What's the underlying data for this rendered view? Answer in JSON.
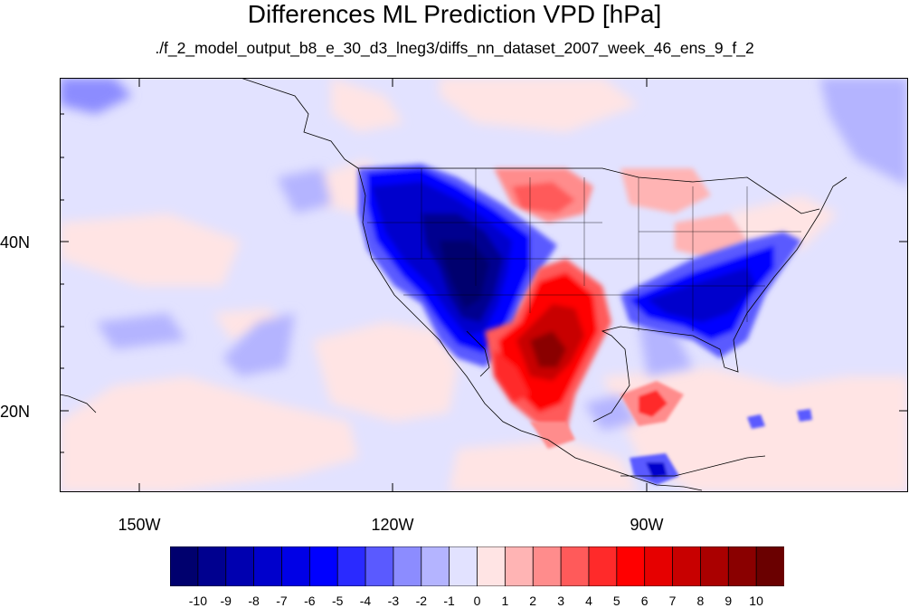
{
  "title": "Differences ML Prediction VPD [hPa]",
  "subtitle": "./f_2_model_output_b8_e_30_d3_lneg3/diffs_nn_dataset_2007_week_46_ens_9_f_2",
  "map": {
    "lon_range": [
      -160,
      -60
    ],
    "lat_range": [
      10,
      59
    ],
    "lat_labels": [
      {
        "lat": 40,
        "text": "40N"
      },
      {
        "lat": 20,
        "text": "20N"
      }
    ],
    "lon_labels": [
      {
        "lon": -150,
        "text": "150W"
      },
      {
        "lon": -120,
        "text": "120W"
      },
      {
        "lon": -90,
        "text": "90W"
      }
    ],
    "regions": [
      {
        "name": "western-us-negative",
        "value": -10,
        "lon": -112,
        "lat": 38
      },
      {
        "name": "texas-mexico-positive",
        "value": 9,
        "lon": -102,
        "lat": 27
      },
      {
        "name": "southeast-us-negative",
        "value": -6,
        "lon": -87,
        "lat": 34
      },
      {
        "name": "northern-plains-positive",
        "value": 3,
        "lon": -102,
        "lat": 46
      },
      {
        "name": "caribbean-positive",
        "value": 5,
        "lon": -89,
        "lat": 20
      }
    ]
  },
  "colorbar": {
    "labels": [
      "-10",
      "-9",
      "-8",
      "-7",
      "-6",
      "-5",
      "-4",
      "-3",
      "-2",
      "-1",
      "0",
      "1",
      "2",
      "3",
      "4",
      "5",
      "6",
      "7",
      "8",
      "9",
      "10"
    ],
    "colors": [
      "#00006e",
      "#00008f",
      "#0000b0",
      "#0000cc",
      "#0000e6",
      "#0000ff",
      "#2a2aff",
      "#5a5aff",
      "#8c8cff",
      "#b4b4ff",
      "#e2e2ff",
      "#ffe4e4",
      "#ffb4b4",
      "#ff8c8c",
      "#ff5a5a",
      "#ff2a2a",
      "#ff0000",
      "#e60000",
      "#c80000",
      "#aa0000",
      "#8a0000",
      "#6a0000"
    ]
  }
}
